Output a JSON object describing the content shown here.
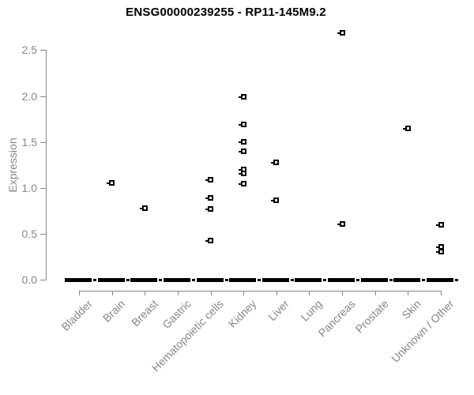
{
  "chart_data": {
    "type": "scatter",
    "subtype": "strip-plot",
    "title": "ENSG00000239255 - RP11-145M9.2",
    "xlabel": "",
    "ylabel": "Expression",
    "ylim": [
      0.0,
      2.7
    ],
    "yticks": [
      "0.0",
      "0.5",
      "1.0",
      "1.5",
      "2.0",
      "2.5"
    ],
    "grid": false,
    "legend_position": "none",
    "marker": "open-square",
    "categories": [
      "Bladder",
      "Brain",
      "Breast",
      "Gastric",
      "Hematopoietic cells",
      "Kidney",
      "Liver",
      "Lung",
      "Pancreas",
      "Prostate",
      "Skin",
      "Unknown / Other"
    ],
    "series": [
      {
        "category": "Bladder",
        "values": [],
        "zero_cluster": true
      },
      {
        "category": "Brain",
        "values": [
          1.06
        ],
        "zero_cluster": true
      },
      {
        "category": "Breast",
        "values": [
          0.78
        ],
        "zero_cluster": true
      },
      {
        "category": "Gastric",
        "values": [],
        "zero_cluster": true
      },
      {
        "category": "Hematopoietic cells",
        "values": [
          1.09,
          0.89,
          0.77,
          0.43
        ],
        "zero_cluster": true
      },
      {
        "category": "Kidney",
        "values": [
          1.99,
          1.69,
          1.5,
          1.4,
          1.2,
          1.16,
          1.05
        ],
        "zero_cluster": true
      },
      {
        "category": "Liver",
        "values": [
          1.28,
          0.87
        ],
        "zero_cluster": true
      },
      {
        "category": "Lung",
        "values": [],
        "zero_cluster": true
      },
      {
        "category": "Pancreas",
        "values": [
          2.69,
          0.61
        ],
        "zero_cluster": true
      },
      {
        "category": "Prostate",
        "values": [],
        "zero_cluster": true
      },
      {
        "category": "Skin",
        "values": [
          1.65
        ],
        "zero_cluster": true
      },
      {
        "category": "Unknown / Other",
        "values": [
          0.6,
          0.36,
          0.31
        ],
        "zero_cluster": true
      }
    ]
  },
  "colors": {
    "points": "#000000",
    "axis": "#878787",
    "tick_labels": "#878787",
    "title": "#000000",
    "background": "#ffffff"
  }
}
